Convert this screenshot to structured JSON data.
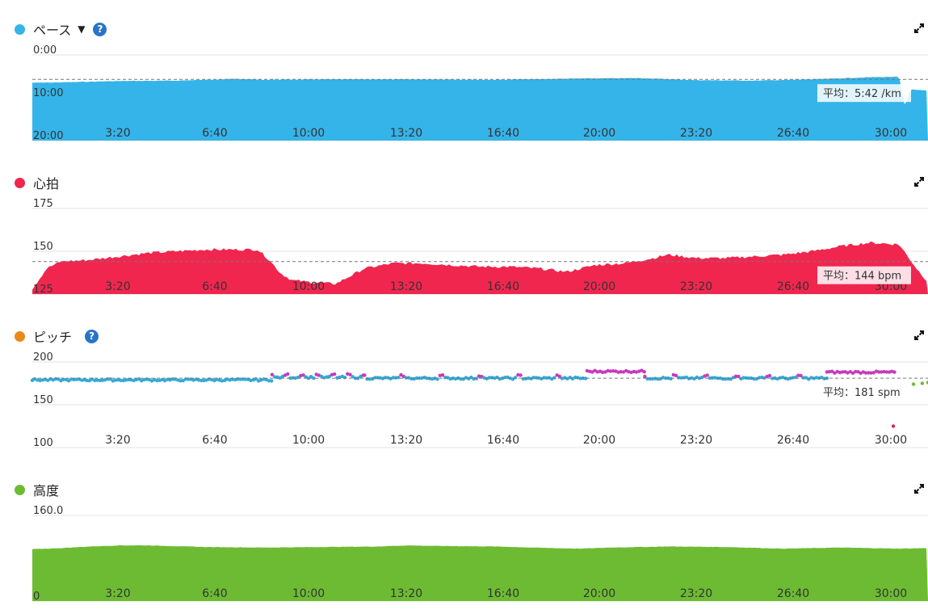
{
  "panels": [
    {
      "id": "pace",
      "title": "ペース",
      "color": "#35b4e9",
      "has_dropdown": true,
      "has_help": true,
      "expand_icon": "expand-icon",
      "avg_label": "平均：5:42 /km",
      "chart_data": {
        "type": "area",
        "y_tick_labels": [
          "0:00",
          "10:00",
          "20:00"
        ],
        "x_tick_labels": [
          "3:20",
          "6:40",
          "10:00",
          "13:20",
          "16:40",
          "20:00",
          "23:20",
          "26:40",
          "30:00"
        ],
        "ylim": [
          0,
          20
        ],
        "y_inverted": true,
        "y_unit": "min/km",
        "average": 5.7,
        "x": [
          0,
          1,
          3,
          5,
          7,
          8,
          10,
          12,
          14,
          16,
          18,
          19,
          21,
          23,
          25,
          27,
          29,
          30,
          30.2,
          30.4,
          31
        ],
        "values": [
          6.5,
          6.4,
          6.1,
          6.0,
          5.6,
          5.8,
          5.7,
          5.7,
          5.7,
          5.8,
          5.6,
          5.5,
          5.4,
          5.9,
          6.0,
          5.7,
          5.2,
          5.1,
          12.0,
          8.0,
          8.4
        ]
      }
    },
    {
      "id": "heart_rate",
      "title": "心拍",
      "color": "#f0264f",
      "has_dropdown": false,
      "has_help": false,
      "expand_icon": "expand-icon",
      "avg_label": "平均：144 bpm",
      "chart_data": {
        "type": "area",
        "y_tick_labels": [
          "175",
          "150",
          "125"
        ],
        "x_tick_labels": [
          "3:20",
          "6:40",
          "10:00",
          "13:20",
          "16:40",
          "20:00",
          "23:20",
          "26:40",
          "30:00"
        ],
        "ylim": [
          125,
          175
        ],
        "y_unit": "bpm",
        "average": 144,
        "x": [
          0,
          0.5,
          1,
          2,
          3,
          4,
          5,
          6,
          7,
          7.8,
          8.2,
          8.6,
          9,
          9.6,
          10.5,
          11.5,
          12.5,
          13.5,
          14.5,
          15.5,
          16.5,
          17.5,
          18.5,
          19.5,
          20.5,
          21.5,
          22,
          23,
          24,
          25,
          26,
          27,
          28,
          29,
          30,
          30.3,
          30.6,
          31
        ],
        "values": [
          128,
          140,
          144,
          145,
          147,
          149,
          150,
          151,
          151,
          151,
          145,
          137,
          133,
          132,
          131,
          140,
          143,
          143,
          142,
          141,
          141,
          140,
          138,
          142,
          143,
          146,
          148,
          146,
          146,
          147,
          148,
          150,
          153,
          155,
          154,
          147,
          140,
          132
        ]
      }
    },
    {
      "id": "cadence",
      "title": "ピッチ",
      "color": "#e88a1a",
      "has_dropdown": false,
      "has_help": true,
      "expand_icon": "expand-icon",
      "avg_label": "平均：181 spm",
      "chart_data": {
        "type": "scatter",
        "y_tick_labels": [
          "200",
          "150",
          "100"
        ],
        "x_tick_labels": [
          "3:20",
          "6:40",
          "10:00",
          "13:20",
          "16:40",
          "20:00",
          "23:20",
          "26:40",
          "30:00"
        ],
        "ylim": [
          100,
          200
        ],
        "y_unit": "spm",
        "average": 181,
        "base_color": "#32a9d8",
        "high_color": "#c43bbd",
        "low_color": "#d9264e",
        "green_color": "#6dbb33",
        "segments": [
          {
            "x": [
              0,
              8.3
            ],
            "value": 179
          },
          {
            "x": [
              8.3,
              11.5
            ],
            "value": 182,
            "high_every": 2
          },
          {
            "x": [
              11.5,
              19.2
            ],
            "value": 181,
            "high_every": 5
          },
          {
            "x": [
              19.2,
              21.2
            ],
            "value": 186,
            "high": true
          },
          {
            "x": [
              21.2,
              27.5
            ],
            "value": 181,
            "high_every": 4
          },
          {
            "x": [
              27.5,
              29.9
            ],
            "value": 185,
            "high": true
          }
        ],
        "outliers": [
          {
            "x": 29.8,
            "value": 125
          }
        ],
        "tail": [
          {
            "x": 30.5,
            "value": 174
          },
          {
            "x": 30.8,
            "value": 175
          },
          {
            "x": 31,
            "value": 176
          }
        ]
      }
    },
    {
      "id": "elevation",
      "title": "高度",
      "color": "#6dbb33",
      "has_dropdown": false,
      "has_help": false,
      "expand_icon": "expand-icon",
      "avg_label": "",
      "chart_data": {
        "type": "area",
        "y_tick_labels": [
          "160.0",
          "0"
        ],
        "x_tick_labels": [
          "3:20",
          "6:40",
          "10:00",
          "13:20",
          "16:40",
          "20:00",
          "23:20",
          "26:40",
          "30:00"
        ],
        "ylim": [
          0,
          160
        ],
        "y_unit": "m",
        "x": [
          0,
          1,
          2,
          3,
          4,
          6,
          8,
          10,
          12,
          13,
          14,
          16,
          18,
          19,
          20,
          22,
          24,
          26,
          28,
          30,
          31
        ],
        "values": [
          97,
          99,
          102,
          104,
          104,
          101,
          100,
          101,
          102,
          104,
          103,
          102,
          99,
          98,
          100,
          102,
          101,
          98,
          100,
          98,
          99
        ]
      }
    }
  ]
}
